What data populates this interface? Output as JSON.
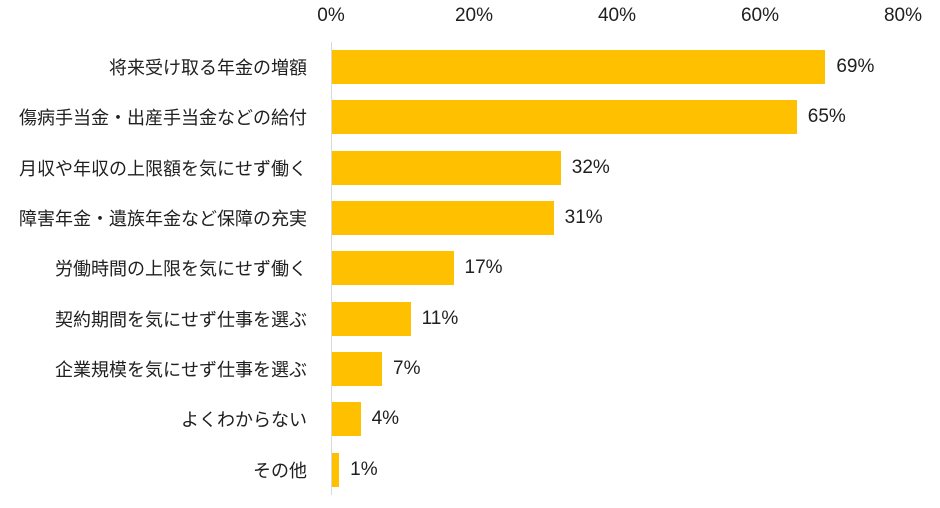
{
  "chart_data": {
    "type": "bar",
    "orientation": "horizontal",
    "title": "",
    "xlabel": "",
    "ylabel": "",
    "categories": [
      "将来受け取る年金の増額",
      "傷病手当金・出産手当金などの給付",
      "月収や年収の上限額を気にせず働く",
      "障害年金・遺族年金など保障の充実",
      "労働時間の上限を気にせず働く",
      "契約期間を気にせず仕事を選ぶ",
      "企業規模を気にせず仕事を選ぶ",
      "よくわからない",
      "その他"
    ],
    "values": [
      69,
      65,
      32,
      31,
      17,
      11,
      7,
      4,
      1
    ],
    "value_labels": [
      "69%",
      "65%",
      "32%",
      "31%",
      "17%",
      "11%",
      "7%",
      "4%",
      "1%"
    ],
    "xlim": [
      0,
      80
    ],
    "x_ticks": [
      0,
      20,
      40,
      60,
      80
    ],
    "x_tick_labels": [
      "0%",
      "20%",
      "40%",
      "60%",
      "80%"
    ],
    "grid": false,
    "legend": false,
    "colors": {
      "bar": "#FFC000",
      "axis_line": "#D9D9D9",
      "text": "#202020",
      "background": "#FFFFFF"
    }
  }
}
